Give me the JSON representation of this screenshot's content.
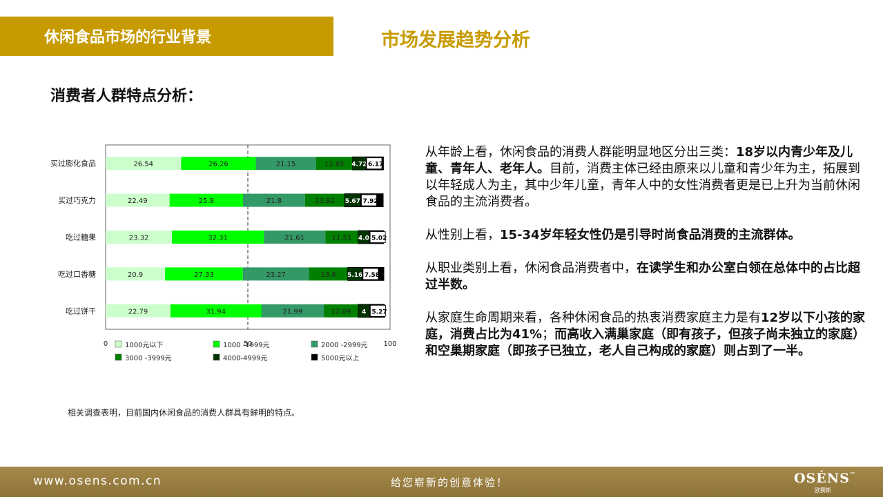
{
  "header": {
    "bar_title": "休闲食品市场的行业背景",
    "section_title": "市场发展趋势分析"
  },
  "subheading": "消费者人群特点分析：",
  "chart_data": {
    "type": "bar",
    "stacked": true,
    "orientation": "horizontal",
    "categories": [
      "买过膨化食品",
      "买过巧克力",
      "吃过糖果",
      "吃过口香糖",
      "吃过饼干"
    ],
    "series": [
      {
        "name": "1000元以下",
        "color": "#ccffcc",
        "values": [
          26.54,
          22.49,
          23.32,
          20.9,
          22.79
        ],
        "labels": [
          "26.54",
          "22.49",
          "23.32",
          "20.9",
          "22.79"
        ]
      },
      {
        "name": "1000 -1999元",
        "color": "#00ff00",
        "values": [
          26.26,
          25.8,
          32.31,
          27.33,
          31.94
        ],
        "labels": [
          "26.26",
          "25.8",
          "32.31",
          "27.33",
          "31.94"
        ]
      },
      {
        "name": "2000 -2999元",
        "color": "#339966",
        "values": [
          21.15,
          21.8,
          21.61,
          23.27,
          21.99
        ],
        "labels": [
          "21.15",
          "21.8",
          "21.61",
          "23.27",
          "21.99"
        ]
      },
      {
        "name": "3000 -3999元",
        "color": "#008000",
        "values": [
          12.85,
          13.92,
          11.51,
          13.6,
          12.09
        ],
        "labels": [
          "12.85",
          "13.92",
          "11.51",
          "13.6",
          "12.09"
        ]
      },
      {
        "name": "4000-4999元",
        "color": "#003300",
        "values": [
          4.72,
          5.67,
          4.0,
          5.16,
          4
        ],
        "labels": [
          "4.72",
          "5.67",
          "4.0",
          "5.16",
          "4"
        ]
      },
      {
        "name": "5000元以上",
        "color": "#000000",
        "values": [
          6.17,
          7.92,
          5.02,
          7.58,
          5.27
        ],
        "labels": [
          "6.17",
          "7.92",
          "5.02",
          "7.58",
          "5.27"
        ]
      }
    ],
    "x_ticks": [
      "0",
      "50",
      "100"
    ],
    "xlim": [
      0,
      100
    ],
    "reference_line": 50,
    "legend_position": "bottom",
    "caption": "相关调查表明，目前国内休闲食品的消费人群具有鲜明的特点。"
  },
  "paragraphs": [
    [
      {
        "text": "从年龄上看，休闲食品的消费人群能明显地区分出三类：",
        "bold": false
      },
      {
        "text": "18岁以内青少年及儿童、青年人、老年人。",
        "bold": true
      },
      {
        "text": "目前，消费主体已经由原来以儿童和青少年为主，拓展到以年轻成人为主，其中少年儿童，青年人中的女性消费者更是已上升为当前休闲食品的主流消费者。",
        "bold": false
      }
    ],
    [
      {
        "text": "从性别上看，",
        "bold": false
      },
      {
        "text": "15-34岁年轻女性仍是引导时尚食品消费的主流群体。",
        "bold": true
      }
    ],
    [
      {
        "text": "从职业类别上看，休闲食品消费者中，",
        "bold": false
      },
      {
        "text": "在读学生和办公室白领在总体中的占比超过半数。",
        "bold": true
      }
    ],
    [
      {
        "text": "从家庭生命周期来看，各种休闲食品的热衷消费家庭主力是有",
        "bold": false
      },
      {
        "text": "12岁以下小孩的家庭，消费占比为41%",
        "bold": true
      },
      {
        "text": "；",
        "bold": false
      },
      {
        "text": "而高收入满巢家庭（即有孩子，但孩子尚未独立的家庭）和空巢期家庭（即孩子已独立，老人自己构成的家庭）则占到了一半。",
        "bold": true
      }
    ]
  ],
  "footer": {
    "url": "www.osens.com.cn",
    "slogan": "给您崭新的创意体验！",
    "logo": "OSÉNS",
    "logo_tm": "™",
    "logo_sub": "欧赛斯"
  }
}
